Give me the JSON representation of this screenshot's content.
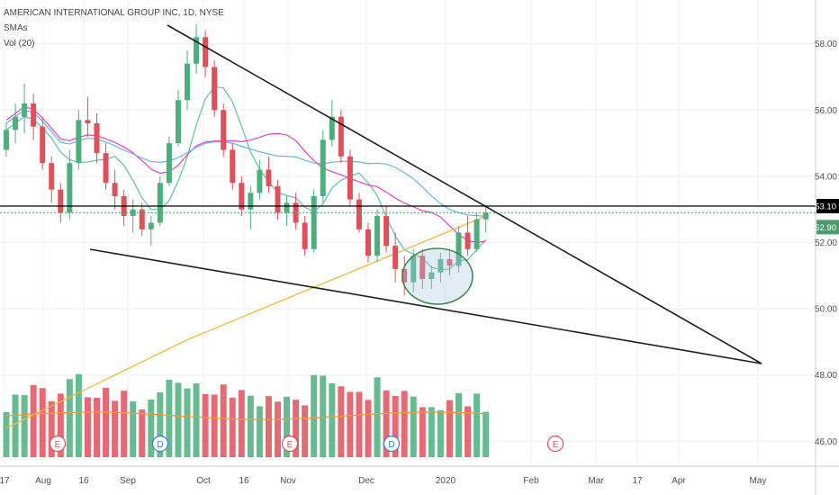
{
  "legend": {
    "title": "AMERICAN INTERNATIONAL GROUP INC, 1D, NYSE",
    "sma": "SMAs",
    "vol": "Vol (20)"
  },
  "price_axis": {
    "ticks": [
      "58.00",
      "56.00",
      "54.00",
      "52.00",
      "50.00",
      "48.00",
      "46.00"
    ],
    "tick_values": [
      58,
      56,
      54,
      52,
      50,
      48,
      46
    ],
    "badge_high": "53.10",
    "badge_last": "52.90"
  },
  "time_axis": {
    "labels": [
      "17",
      "Aug",
      "16",
      "Sep",
      "Oct",
      "16",
      "Nov",
      "Dec",
      "2020",
      "Feb",
      "Mar",
      "17",
      "Apr",
      "May"
    ]
  },
  "events": [
    {
      "letter": "E",
      "kind": "earnings"
    },
    {
      "letter": "D",
      "kind": "dividend"
    },
    {
      "letter": "E",
      "kind": "earnings"
    },
    {
      "letter": "D",
      "kind": "dividend"
    },
    {
      "letter": "E",
      "kind": "earnings-upcoming"
    }
  ],
  "colors": {
    "up": "#4caf7d",
    "down": "#e0505a",
    "sma_fast": "#5fbfa8",
    "sma_mid": "#e040c8",
    "sma_slow": "#64b5e6",
    "sma_long": "#f5b73a",
    "vol_ma": "#f59a3a",
    "trendline": "#1e1e1e",
    "badge_last": "#4c9a6c",
    "badge_high": "#000000"
  },
  "chart_data": {
    "type": "candlestick",
    "symbol": "AMERICAN INTERNATIONAL GROUP INC",
    "interval": "1D",
    "exchange": "NYSE",
    "y_range": [
      45.2,
      59.2
    ],
    "series": [
      {
        "name": "SMAs",
        "values": [
          [
            54.8,
            55.6,
            54.6,
            55.4
          ],
          [
            55.4,
            56.2,
            55.0,
            55.8
          ],
          [
            55.8,
            56.8,
            55.3,
            56.2
          ],
          [
            56.2,
            56.5,
            55.1,
            55.5
          ],
          [
            55.5,
            55.8,
            54.2,
            54.4
          ],
          [
            54.4,
            54.6,
            53.2,
            53.6
          ],
          [
            53.6,
            53.8,
            52.6,
            52.9
          ],
          [
            52.9,
            54.8,
            52.7,
            54.4
          ],
          [
            54.4,
            56.0,
            54.2,
            55.7
          ],
          [
            55.7,
            56.4,
            55.2,
            55.6
          ],
          [
            55.6,
            55.9,
            54.4,
            54.7
          ],
          [
            54.7,
            55.0,
            53.6,
            53.8
          ],
          [
            53.8,
            54.2,
            53.0,
            53.4
          ],
          [
            53.4,
            53.6,
            52.5,
            52.8
          ],
          [
            52.8,
            53.3,
            52.3,
            53.0
          ],
          [
            53.0,
            53.2,
            52.2,
            52.4
          ],
          [
            52.4,
            52.8,
            51.9,
            52.6
          ],
          [
            52.6,
            54.0,
            52.5,
            53.8
          ],
          [
            53.8,
            55.2,
            53.7,
            55.0
          ],
          [
            55.0,
            56.6,
            54.9,
            56.3
          ],
          [
            56.3,
            57.8,
            56.0,
            57.4
          ],
          [
            57.4,
            58.6,
            57.1,
            58.2
          ],
          [
            58.2,
            58.4,
            57.0,
            57.3
          ],
          [
            57.3,
            57.5,
            55.8,
            56.0
          ],
          [
            56.0,
            56.2,
            54.6,
            54.8
          ],
          [
            54.8,
            55.0,
            53.6,
            53.8
          ],
          [
            53.8,
            54.0,
            52.8,
            53.0
          ],
          [
            53.0,
            53.7,
            52.4,
            53.5
          ],
          [
            53.5,
            54.5,
            53.3,
            54.2
          ],
          [
            54.2,
            54.6,
            53.5,
            53.7
          ],
          [
            53.7,
            53.9,
            52.7,
            52.9
          ],
          [
            52.9,
            53.4,
            52.5,
            53.2
          ],
          [
            53.2,
            53.5,
            52.4,
            52.6
          ],
          [
            52.6,
            52.8,
            51.6,
            51.8
          ],
          [
            51.8,
            53.6,
            51.7,
            53.4
          ],
          [
            53.4,
            55.4,
            53.2,
            55.1
          ],
          [
            55.1,
            56.3,
            54.9,
            55.8
          ],
          [
            55.8,
            56.0,
            54.4,
            54.6
          ],
          [
            54.6,
            54.8,
            53.1,
            53.3
          ],
          [
            53.3,
            53.5,
            52.3,
            52.4
          ],
          [
            52.4,
            52.6,
            51.4,
            51.6
          ],
          [
            51.6,
            53.0,
            51.4,
            52.8
          ],
          [
            52.8,
            53.1,
            51.7,
            51.9
          ],
          [
            51.9,
            52.3,
            50.8,
            51.2
          ],
          [
            51.2,
            51.6,
            50.4,
            50.8
          ],
          [
            50.8,
            51.8,
            50.5,
            51.6
          ],
          [
            51.6,
            51.8,
            50.6,
            50.9
          ],
          [
            50.9,
            51.3,
            50.6,
            51.1
          ],
          [
            51.1,
            51.7,
            50.8,
            51.5
          ],
          [
            51.5,
            51.8,
            51.0,
            51.3
          ],
          [
            51.3,
            52.5,
            51.1,
            52.3
          ],
          [
            52.3,
            52.8,
            51.6,
            51.8
          ],
          [
            51.8,
            52.9,
            51.7,
            52.7
          ],
          [
            52.7,
            53.1,
            52.3,
            52.9
          ]
        ]
      }
    ],
    "trendlines": [
      {
        "name": "upper",
        "from": {
          "date": "2019-09-27",
          "price": 58.7
        },
        "to": {
          "date": "2020-04-30",
          "price": 48.4
        }
      },
      {
        "name": "lower",
        "from": {
          "date": "2019-08-14",
          "price": 51.8
        },
        "to": {
          "date": "2020-04-30",
          "price": 48.4
        }
      }
    ],
    "horizontal_lines": [
      53.1
    ],
    "last_price": 52.9
  }
}
